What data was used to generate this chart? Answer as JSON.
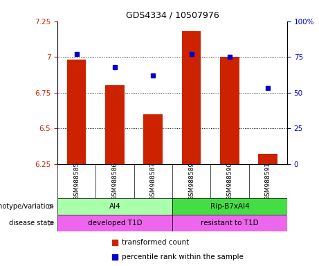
{
  "title": "GDS4334 / 10507976",
  "samples": [
    "GSM988585",
    "GSM988586",
    "GSM988587",
    "GSM988589",
    "GSM988590",
    "GSM988591"
  ],
  "bar_values": [
    6.98,
    6.8,
    6.6,
    7.18,
    7.0,
    6.32
  ],
  "percentile_values": [
    77,
    68,
    62,
    77,
    75,
    53
  ],
  "ylim_left": [
    6.25,
    7.25
  ],
  "ylim_right": [
    0,
    100
  ],
  "yticks_left": [
    6.25,
    6.5,
    6.75,
    7.0,
    7.25
  ],
  "ytick_labels_left": [
    "6.25",
    "6.5",
    "6.75",
    "7",
    "7.25"
  ],
  "yticks_right": [
    0,
    25,
    50,
    75,
    100
  ],
  "ytick_labels_right": [
    "0",
    "25",
    "50",
    "75",
    "100%"
  ],
  "bar_color": "#cc2200",
  "point_color": "#0000cc",
  "bar_width": 0.5,
  "grid_yticks": [
    6.5,
    6.75,
    7.0
  ],
  "genotype_labels": [
    [
      "AI4",
      0,
      3
    ],
    [
      "Rip-B7xAI4",
      3,
      6
    ]
  ],
  "genotype_colors": [
    "#aaffaa",
    "#44dd44"
  ],
  "disease_labels": [
    [
      "developed T1D",
      0,
      3
    ],
    [
      "resistant to T1D",
      3,
      6
    ]
  ],
  "disease_color": "#ee66ee",
  "row_label_genotype": "genotype/variation",
  "row_label_disease": "disease state",
  "legend_bar_label": "transformed count",
  "legend_point_label": "percentile rank within the sample",
  "sample_bg_color": "#cccccc",
  "fig_bg_color": "#ffffff"
}
